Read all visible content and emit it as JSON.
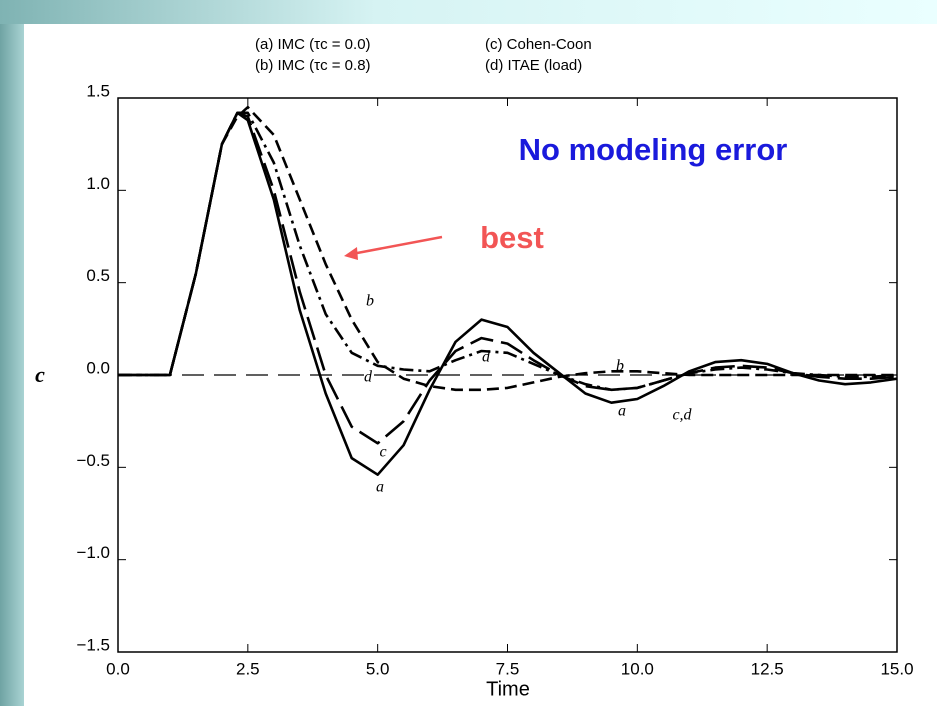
{
  "chart_data": {
    "type": "line",
    "subtitle": "No modeling error",
    "annotation": "best",
    "xlabel": "Time",
    "ylabel": "c",
    "x": [
      0,
      1,
      1.5,
      2,
      2.3,
      2.5,
      3,
      3.5,
      4,
      4.5,
      5,
      5.5,
      6,
      6.5,
      7,
      7.5,
      8,
      8.5,
      9,
      9.5,
      10,
      10.5,
      11,
      11.5,
      12,
      12.5,
      13,
      13.5,
      14,
      14.5,
      15
    ],
    "series": [
      {
        "name": "(a) IMC (τc = 0.0)",
        "color": "#000000",
        "style": "solid",
        "values": [
          0,
          0,
          0.55,
          1.25,
          1.42,
          1.38,
          0.95,
          0.35,
          -0.1,
          -0.45,
          -0.54,
          -0.38,
          -0.08,
          0.18,
          0.3,
          0.26,
          0.12,
          0.01,
          -0.1,
          -0.15,
          -0.13,
          -0.06,
          0.02,
          0.07,
          0.08,
          0.06,
          0.01,
          -0.03,
          -0.05,
          -0.04,
          -0.02
        ]
      },
      {
        "name": "(b) IMC (τc = 0.8)",
        "color": "#000000",
        "style": "dashed",
        "values": [
          0,
          0,
          0.55,
          1.25,
          1.4,
          1.45,
          1.3,
          0.95,
          0.6,
          0.3,
          0.07,
          -0.02,
          -0.06,
          -0.08,
          -0.08,
          -0.07,
          -0.04,
          -0.01,
          0.01,
          0.02,
          0.02,
          0.01,
          0,
          0,
          0,
          0,
          0,
          0,
          0,
          0,
          0
        ]
      },
      {
        "name": "(c) Cohen-Coon",
        "color": "#000000",
        "style": "longdash",
        "values": [
          0,
          0,
          0.55,
          1.25,
          1.42,
          1.4,
          1.0,
          0.45,
          0,
          -0.28,
          -0.37,
          -0.25,
          -0.03,
          0.13,
          0.2,
          0.17,
          0.08,
          0,
          -0.06,
          -0.08,
          -0.07,
          -0.03,
          0.01,
          0.04,
          0.05,
          0.04,
          0.01,
          -0.01,
          -0.02,
          -0.02,
          -0.01
        ]
      },
      {
        "name": "(d) ITAE (load)",
        "color": "#000000",
        "style": "dashdot",
        "values": [
          0,
          0,
          0.55,
          1.25,
          1.42,
          1.42,
          1.15,
          0.7,
          0.33,
          0.12,
          0.05,
          0.03,
          0.02,
          0.08,
          0.13,
          0.12,
          0.06,
          0,
          -0.05,
          -0.08,
          -0.07,
          -0.03,
          0.01,
          0.03,
          0.04,
          0.03,
          0.01,
          0,
          -0.01,
          -0.01,
          0
        ]
      }
    ],
    "curve_labels": [
      "b",
      "d",
      "d",
      "b",
      "c",
      "a",
      "a",
      "c,d"
    ],
    "xlim": [
      0,
      15
    ],
    "xticks": [
      {
        "value": 0,
        "label": "0.0"
      },
      {
        "value": 2.5,
        "label": "2.5"
      },
      {
        "value": 5,
        "label": "5.0"
      },
      {
        "value": 7.5,
        "label": "7.5"
      },
      {
        "value": 10,
        "label": "10.0"
      },
      {
        "value": 12.5,
        "label": "12.5"
      },
      {
        "value": 15,
        "label": "15.0"
      }
    ],
    "ylim": [
      -1.5,
      1.5
    ],
    "yticks": [
      {
        "value": -1.5,
        "label": "−1.5"
      },
      {
        "value": -1,
        "label": "−1.0"
      },
      {
        "value": -0.5,
        "label": "−0.5"
      },
      {
        "value": 0,
        "label": "0.0"
      },
      {
        "value": 0.5,
        "label": "0.5"
      },
      {
        "value": 1,
        "label": "1.0"
      },
      {
        "value": 1.5,
        "label": "1.5"
      }
    ]
  }
}
